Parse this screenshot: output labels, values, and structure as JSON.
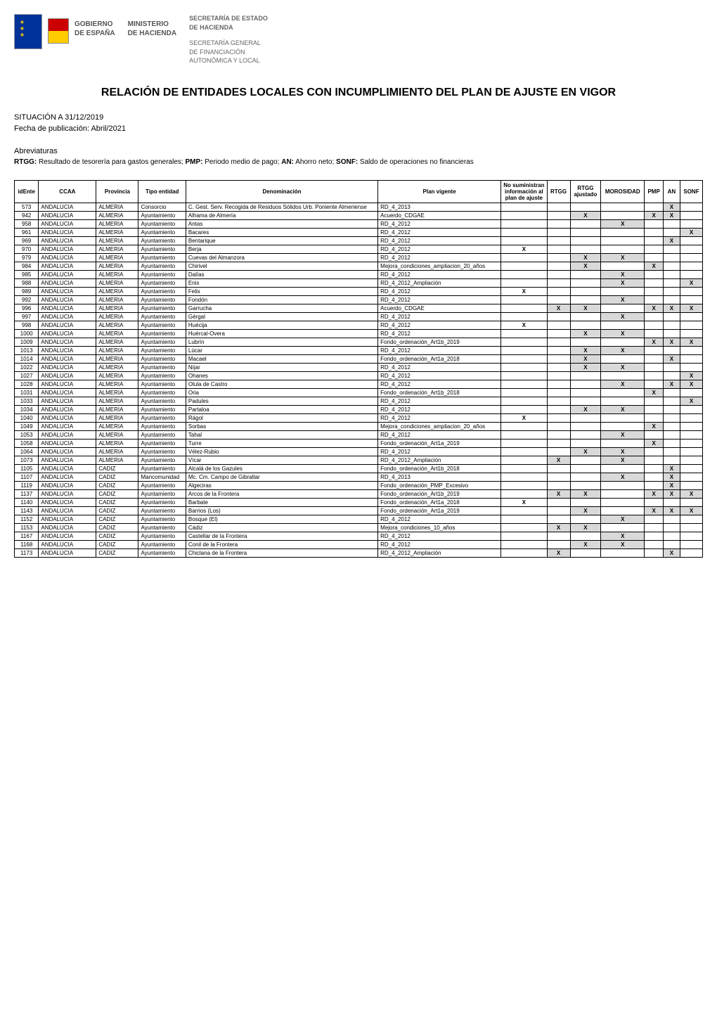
{
  "header": {
    "gobierno": "GOBIERNO\nDE ESPAÑA",
    "ministerio": "MINISTERIO\nDE HACIENDA",
    "secretaria_top": "SECRETARÍA DE ESTADO\nDE HACIENDA",
    "secretaria_bottom": "SECRETARÍA GENERAL\nDE FINANCIACIÓN\nAUTONÓMICA Y LOCAL"
  },
  "title": "RELACIÓN DE ENTIDADES LOCALES CON INCUMPLIMIENTO DEL PLAN DE AJUSTE EN VIGOR",
  "situacion": "SITUACIÓN A 31/12/2019",
  "fecha_pub": "Fecha de publicación: Abril/2021",
  "abreviaturas_label": "Abreviaturas",
  "abreviaturas_desc": "RTGG: Resultado de tesorería para gastos generales; PMP: Periodo medio de pago; AN: Ahorro neto; SONF: Saldo de operaciones no financieras",
  "columns": [
    "idEnte",
    "CCAA",
    "Provincia",
    "Tipo entidad",
    "Denominación",
    "Plan vigente",
    "No suministran información al plan de ajuste",
    "RTGG",
    "RTGG ajustado",
    "MOROSIDAD",
    "PMP",
    "AN",
    "SONF"
  ],
  "rows": [
    {
      "id": "573",
      "ccaa": "ANDALUCIA",
      "prov": "ALMERIA",
      "tipo": "Consorcio",
      "denom": "C. Gest. Serv. Recogida de Residuos Sólidos Urb. Poniente Almeriense",
      "plan": "RD_4_2013",
      "nosum": "",
      "rtgg": "",
      "rtgga": "",
      "moro": "",
      "pmp": "",
      "an": "X",
      "sonf": ""
    },
    {
      "id": "942",
      "ccaa": "ANDALUCIA",
      "prov": "ALMERIA",
      "tipo": "Ayuntamiento",
      "denom": "Alhama de Almería",
      "plan": "Acuerdo_CDGAE",
      "nosum": "",
      "rtgg": "",
      "rtgga": "X",
      "moro": "",
      "pmp": "X",
      "an": "X",
      "sonf": ""
    },
    {
      "id": "958",
      "ccaa": "ANDALUCIA",
      "prov": "ALMERIA",
      "tipo": "Ayuntamiento",
      "denom": "Antas",
      "plan": "RD_4_2012",
      "nosum": "",
      "rtgg": "",
      "rtgga": "",
      "moro": "X",
      "pmp": "",
      "an": "",
      "sonf": ""
    },
    {
      "id": "961",
      "ccaa": "ANDALUCIA",
      "prov": "ALMERIA",
      "tipo": "Ayuntamiento",
      "denom": "Bacares",
      "plan": "RD_4_2012",
      "nosum": "",
      "rtgg": "",
      "rtgga": "",
      "moro": "",
      "pmp": "",
      "an": "",
      "sonf": "X"
    },
    {
      "id": "969",
      "ccaa": "ANDALUCIA",
      "prov": "ALMERIA",
      "tipo": "Ayuntamiento",
      "denom": "Bentarique",
      "plan": "RD_4_2012",
      "nosum": "",
      "rtgg": "",
      "rtgga": "",
      "moro": "",
      "pmp": "",
      "an": "X",
      "sonf": ""
    },
    {
      "id": "970",
      "ccaa": "ANDALUCIA",
      "prov": "ALMERIA",
      "tipo": "Ayuntamiento",
      "denom": "Berja",
      "plan": "RD_4_2012",
      "nosum": "X",
      "rtgg": "",
      "rtgga": "",
      "moro": "",
      "pmp": "",
      "an": "",
      "sonf": ""
    },
    {
      "id": "979",
      "ccaa": "ANDALUCIA",
      "prov": "ALMERIA",
      "tipo": "Ayuntamiento",
      "denom": "Cuevas del Almanzora",
      "plan": "RD_4_2012",
      "nosum": "",
      "rtgg": "",
      "rtgga": "X",
      "moro": "X",
      "pmp": "",
      "an": "",
      "sonf": ""
    },
    {
      "id": "984",
      "ccaa": "ANDALUCIA",
      "prov": "ALMERIA",
      "tipo": "Ayuntamiento",
      "denom": "Chirivel",
      "plan": "Mejora_condiciones_ampliacion_20_años",
      "nosum": "",
      "rtgg": "",
      "rtgga": "X",
      "moro": "",
      "pmp": "X",
      "an": "",
      "sonf": ""
    },
    {
      "id": "985",
      "ccaa": "ANDALUCIA",
      "prov": "ALMERIA",
      "tipo": "Ayuntamiento",
      "denom": "Dalías",
      "plan": "RD_4_2012",
      "nosum": "",
      "rtgg": "",
      "rtgga": "",
      "moro": "X",
      "pmp": "",
      "an": "",
      "sonf": ""
    },
    {
      "id": "988",
      "ccaa": "ANDALUCIA",
      "prov": "ALMERIA",
      "tipo": "Ayuntamiento",
      "denom": "Enix",
      "plan": "RD_4_2012_Ampliación",
      "nosum": "",
      "rtgg": "",
      "rtgga": "",
      "moro": "X",
      "pmp": "",
      "an": "",
      "sonf": "X"
    },
    {
      "id": "989",
      "ccaa": "ANDALUCIA",
      "prov": "ALMERIA",
      "tipo": "Ayuntamiento",
      "denom": "Felix",
      "plan": "RD_4_2012",
      "nosum": "X",
      "rtgg": "",
      "rtgga": "",
      "moro": "",
      "pmp": "",
      "an": "",
      "sonf": ""
    },
    {
      "id": "992",
      "ccaa": "ANDALUCIA",
      "prov": "ALMERIA",
      "tipo": "Ayuntamiento",
      "denom": "Fondón",
      "plan": "RD_4_2012",
      "nosum": "",
      "rtgg": "",
      "rtgga": "",
      "moro": "X",
      "pmp": "",
      "an": "",
      "sonf": ""
    },
    {
      "id": "996",
      "ccaa": "ANDALUCIA",
      "prov": "ALMERIA",
      "tipo": "Ayuntamiento",
      "denom": "Garrucha",
      "plan": "Acuerdo_CDGAE",
      "nosum": "",
      "rtgg": "X",
      "rtgga": "X",
      "moro": "",
      "pmp": "X",
      "an": "X",
      "sonf": "X"
    },
    {
      "id": "997",
      "ccaa": "ANDALUCIA",
      "prov": "ALMERIA",
      "tipo": "Ayuntamiento",
      "denom": "Gérgal",
      "plan": "RD_4_2012",
      "nosum": "",
      "rtgg": "",
      "rtgga": "",
      "moro": "X",
      "pmp": "",
      "an": "",
      "sonf": ""
    },
    {
      "id": "998",
      "ccaa": "ANDALUCIA",
      "prov": "ALMERIA",
      "tipo": "Ayuntamiento",
      "denom": "Huécija",
      "plan": "RD_4_2012",
      "nosum": "X",
      "rtgg": "",
      "rtgga": "",
      "moro": "",
      "pmp": "",
      "an": "",
      "sonf": ""
    },
    {
      "id": "1000",
      "ccaa": "ANDALUCIA",
      "prov": "ALMERIA",
      "tipo": "Ayuntamiento",
      "denom": "Huércal-Overa",
      "plan": "RD_4_2012",
      "nosum": "",
      "rtgg": "",
      "rtgga": "X",
      "moro": "X",
      "pmp": "",
      "an": "",
      "sonf": ""
    },
    {
      "id": "1009",
      "ccaa": "ANDALUCIA",
      "prov": "ALMERIA",
      "tipo": "Ayuntamiento",
      "denom": "Lubrín",
      "plan": "Fondo_ordenación_Art1b_2019",
      "nosum": "",
      "rtgg": "",
      "rtgga": "",
      "moro": "",
      "pmp": "X",
      "an": "X",
      "sonf": "X"
    },
    {
      "id": "1013",
      "ccaa": "ANDALUCIA",
      "prov": "ALMERIA",
      "tipo": "Ayuntamiento",
      "denom": "Lúcar",
      "plan": "RD_4_2012",
      "nosum": "",
      "rtgg": "",
      "rtgga": "X",
      "moro": "X",
      "pmp": "",
      "an": "",
      "sonf": ""
    },
    {
      "id": "1014",
      "ccaa": "ANDALUCIA",
      "prov": "ALMERIA",
      "tipo": "Ayuntamiento",
      "denom": "Macael",
      "plan": "Fondo_ordenación_Art1a_2018",
      "nosum": "",
      "rtgg": "",
      "rtgga": "X",
      "moro": "",
      "pmp": "",
      "an": "X",
      "sonf": ""
    },
    {
      "id": "1022",
      "ccaa": "ANDALUCIA",
      "prov": "ALMERIA",
      "tipo": "Ayuntamiento",
      "denom": "Níjar",
      "plan": "RD_4_2012",
      "nosum": "",
      "rtgg": "",
      "rtgga": "X",
      "moro": "X",
      "pmp": "",
      "an": "",
      "sonf": ""
    },
    {
      "id": "1027",
      "ccaa": "ANDALUCIA",
      "prov": "ALMERIA",
      "tipo": "Ayuntamiento",
      "denom": "Ohanes",
      "plan": "RD_4_2012",
      "nosum": "",
      "rtgg": "",
      "rtgga": "",
      "moro": "",
      "pmp": "",
      "an": "",
      "sonf": "X"
    },
    {
      "id": "1028",
      "ccaa": "ANDALUCIA",
      "prov": "ALMERIA",
      "tipo": "Ayuntamiento",
      "denom": "Olula de Castro",
      "plan": "RD_4_2012",
      "nosum": "",
      "rtgg": "",
      "rtgga": "",
      "moro": "X",
      "pmp": "",
      "an": "X",
      "sonf": "X"
    },
    {
      "id": "1031",
      "ccaa": "ANDALUCIA",
      "prov": "ALMERIA",
      "tipo": "Ayuntamiento",
      "denom": "Oria",
      "plan": "Fondo_ordenación_Art1b_2018",
      "nosum": "",
      "rtgg": "",
      "rtgga": "",
      "moro": "",
      "pmp": "X",
      "an": "",
      "sonf": ""
    },
    {
      "id": "1033",
      "ccaa": "ANDALUCIA",
      "prov": "ALMERIA",
      "tipo": "Ayuntamiento",
      "denom": "Padules",
      "plan": "RD_4_2012",
      "nosum": "",
      "rtgg": "",
      "rtgga": "",
      "moro": "",
      "pmp": "",
      "an": "",
      "sonf": "X"
    },
    {
      "id": "1034",
      "ccaa": "ANDALUCIA",
      "prov": "ALMERIA",
      "tipo": "Ayuntamiento",
      "denom": "Partaloa",
      "plan": "RD_4_2012",
      "nosum": "",
      "rtgg": "",
      "rtgga": "X",
      "moro": "X",
      "pmp": "",
      "an": "",
      "sonf": ""
    },
    {
      "id": "1040",
      "ccaa": "ANDALUCIA",
      "prov": "ALMERIA",
      "tipo": "Ayuntamiento",
      "denom": "Rágol",
      "plan": "RD_4_2012",
      "nosum": "X",
      "rtgg": "",
      "rtgga": "",
      "moro": "",
      "pmp": "",
      "an": "",
      "sonf": ""
    },
    {
      "id": "1049",
      "ccaa": "ANDALUCIA",
      "prov": "ALMERIA",
      "tipo": "Ayuntamiento",
      "denom": "Sorbas",
      "plan": "Mejora_condiciones_ampliacion_20_años",
      "nosum": "",
      "rtgg": "",
      "rtgga": "",
      "moro": "",
      "pmp": "X",
      "an": "",
      "sonf": ""
    },
    {
      "id": "1053",
      "ccaa": "ANDALUCIA",
      "prov": "ALMERIA",
      "tipo": "Ayuntamiento",
      "denom": "Tahal",
      "plan": "RD_4_2012",
      "nosum": "",
      "rtgg": "",
      "rtgga": "",
      "moro": "X",
      "pmp": "",
      "an": "",
      "sonf": ""
    },
    {
      "id": "1058",
      "ccaa": "ANDALUCIA",
      "prov": "ALMERIA",
      "tipo": "Ayuntamiento",
      "denom": "Turre",
      "plan": "Fondo_ordenación_Art1a_2019",
      "nosum": "",
      "rtgg": "",
      "rtgga": "",
      "moro": "",
      "pmp": "X",
      "an": "",
      "sonf": ""
    },
    {
      "id": "1064",
      "ccaa": "ANDALUCIA",
      "prov": "ALMERIA",
      "tipo": "Ayuntamiento",
      "denom": "Vélez-Rubio",
      "plan": "RD_4_2012",
      "nosum": "",
      "rtgg": "",
      "rtgga": "X",
      "moro": "X",
      "pmp": "",
      "an": "",
      "sonf": ""
    },
    {
      "id": "1073",
      "ccaa": "ANDALUCIA",
      "prov": "ALMERIA",
      "tipo": "Ayuntamiento",
      "denom": "Vícar",
      "plan": "RD_4_2012_Ampliación",
      "nosum": "",
      "rtgg": "X",
      "rtgga": "",
      "moro": "X",
      "pmp": "",
      "an": "",
      "sonf": ""
    },
    {
      "id": "1105",
      "ccaa": "ANDALUCIA",
      "prov": "CADIZ",
      "tipo": "Ayuntamiento",
      "denom": "Alcalá de los Gazules",
      "plan": "Fondo_ordenación_Art1b_2018",
      "nosum": "",
      "rtgg": "",
      "rtgga": "",
      "moro": "",
      "pmp": "",
      "an": "X",
      "sonf": ""
    },
    {
      "id": "1107",
      "ccaa": "ANDALUCIA",
      "prov": "CADIZ",
      "tipo": "Mancomunidad",
      "denom": "Mc. Cm. Campo de Gibraltar",
      "plan": "RD_4_2013",
      "nosum": "",
      "rtgg": "",
      "rtgga": "",
      "moro": "X",
      "pmp": "",
      "an": "X",
      "sonf": ""
    },
    {
      "id": "1119",
      "ccaa": "ANDALUCIA",
      "prov": "CADIZ",
      "tipo": "Ayuntamiento",
      "denom": "Algeciras",
      "plan": "Fondo_ordenación_PMP_Excesivo",
      "nosum": "",
      "rtgg": "",
      "rtgga": "",
      "moro": "",
      "pmp": "",
      "an": "X",
      "sonf": ""
    },
    {
      "id": "1137",
      "ccaa": "ANDALUCIA",
      "prov": "CADIZ",
      "tipo": "Ayuntamiento",
      "denom": "Arcos de la Frontera",
      "plan": "Fondo_ordenación_Art1b_2019",
      "nosum": "",
      "rtgg": "X",
      "rtgga": "X",
      "moro": "",
      "pmp": "X",
      "an": "X",
      "sonf": "X"
    },
    {
      "id": "1140",
      "ccaa": "ANDALUCIA",
      "prov": "CADIZ",
      "tipo": "Ayuntamiento",
      "denom": "Barbate",
      "plan": "Fondo_ordenación_Art1a_2018",
      "nosum": "X",
      "rtgg": "",
      "rtgga": "",
      "moro": "",
      "pmp": "",
      "an": "",
      "sonf": ""
    },
    {
      "id": "1143",
      "ccaa": "ANDALUCIA",
      "prov": "CADIZ",
      "tipo": "Ayuntamiento",
      "denom": "Barrios (Los)",
      "plan": "Fondo_ordenación_Art1a_2019",
      "nosum": "",
      "rtgg": "",
      "rtgga": "X",
      "moro": "",
      "pmp": "X",
      "an": "X",
      "sonf": "X"
    },
    {
      "id": "1152",
      "ccaa": "ANDALUCIA",
      "prov": "CADIZ",
      "tipo": "Ayuntamiento",
      "denom": "Bosque (El)",
      "plan": "RD_4_2012",
      "nosum": "",
      "rtgg": "",
      "rtgga": "",
      "moro": "X",
      "pmp": "",
      "an": "",
      "sonf": ""
    },
    {
      "id": "1153",
      "ccaa": "ANDALUCIA",
      "prov": "CADIZ",
      "tipo": "Ayuntamiento",
      "denom": "Cádiz",
      "plan": "Mejora_condiciones_10_años",
      "nosum": "",
      "rtgg": "X",
      "rtgga": "X",
      "moro": "",
      "pmp": "",
      "an": "",
      "sonf": ""
    },
    {
      "id": "1167",
      "ccaa": "ANDALUCIA",
      "prov": "CADIZ",
      "tipo": "Ayuntamiento",
      "denom": "Castellar de la Frontera",
      "plan": "RD_4_2012",
      "nosum": "",
      "rtgg": "",
      "rtgga": "",
      "moro": "X",
      "pmp": "",
      "an": "",
      "sonf": ""
    },
    {
      "id": "1168",
      "ccaa": "ANDALUCIA",
      "prov": "CADIZ",
      "tipo": "Ayuntamiento",
      "denom": "Conil de la Frontera",
      "plan": "RD_4_2012",
      "nosum": "",
      "rtgg": "",
      "rtgga": "X",
      "moro": "X",
      "pmp": "",
      "an": "",
      "sonf": ""
    },
    {
      "id": "1173",
      "ccaa": "ANDALUCIA",
      "prov": "CADIZ",
      "tipo": "Ayuntamiento",
      "denom": "Chiclana de la Frontera",
      "plan": "RD_4_2012_Ampliación",
      "nosum": "",
      "rtgg": "X",
      "rtgga": "",
      "moro": "",
      "pmp": "",
      "an": "X",
      "sonf": ""
    }
  ]
}
